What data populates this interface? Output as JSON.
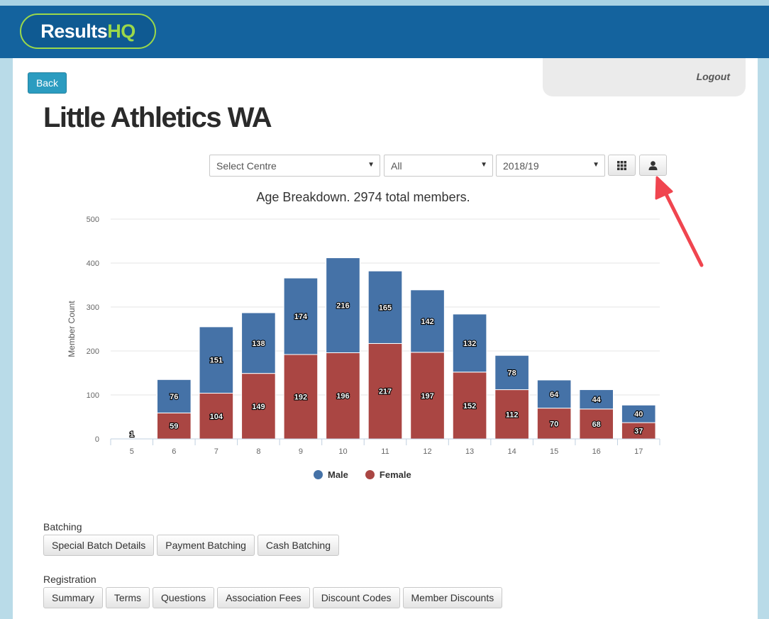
{
  "header": {
    "logo_part1": "Results",
    "logo_part2": "HQ"
  },
  "nav": {
    "back_label": "Back",
    "logout_label": "Logout"
  },
  "page": {
    "title": "Little Athletics WA"
  },
  "filters": {
    "centre": "Select Centre",
    "group": "All",
    "season": "2018/19",
    "grid_icon": "grid-icon",
    "person_icon": "person-icon"
  },
  "chart_data": {
    "type": "bar",
    "stacked": true,
    "title": "Age Breakdown. 2974 total members.",
    "xlabel": "",
    "ylabel": "Member Count",
    "ylim": [
      0,
      500
    ],
    "yticks": [
      0,
      100,
      200,
      300,
      400,
      500
    ],
    "grid": true,
    "legend_position": "bottom-center",
    "categories": [
      "5",
      "6",
      "7",
      "8",
      "9",
      "10",
      "11",
      "12",
      "13",
      "14",
      "15",
      "16",
      "17"
    ],
    "series": [
      {
        "name": "Male",
        "color": "#4572a7",
        "values": [
          0,
          76,
          151,
          138,
          174,
          216,
          165,
          142,
          132,
          78,
          64,
          44,
          40
        ]
      },
      {
        "name": "Female",
        "color": "#aa4643",
        "values": [
          1,
          59,
          104,
          149,
          192,
          196,
          217,
          197,
          152,
          112,
          70,
          68,
          37
        ]
      }
    ]
  },
  "sections": {
    "batching": {
      "label": "Batching",
      "buttons": [
        "Special Batch Details",
        "Payment Batching",
        "Cash Batching"
      ]
    },
    "registration": {
      "label": "Registration",
      "buttons": [
        "Summary",
        "Terms",
        "Questions",
        "Association Fees",
        "Discount Codes",
        "Member Discounts"
      ]
    }
  },
  "colors": {
    "header_bg": "#14639e",
    "accent_green": "#9bd84a",
    "back_button": "#2b9cc0",
    "annotation_arrow": "#f0454f"
  }
}
